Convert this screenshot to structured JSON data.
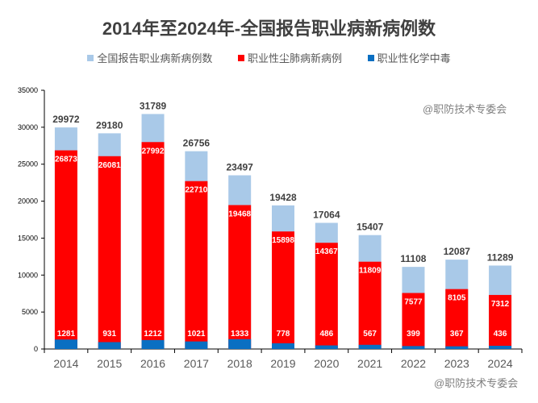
{
  "chart_data": {
    "type": "bar",
    "title": "2014年至2024年-全国报告职业病新病例数",
    "categories": [
      "2014",
      "2015",
      "2016",
      "2017",
      "2018",
      "2019",
      "2020",
      "2021",
      "2022",
      "2023",
      "2024"
    ],
    "series": [
      {
        "name": "全国报告职业病新病例数",
        "color": "#a9c9e8",
        "values": [
          29972,
          29180,
          31789,
          26756,
          23497,
          19428,
          17064,
          15407,
          11108,
          12087,
          11289
        ]
      },
      {
        "name": "职业性尘肺病新病例",
        "color": "#ff0000",
        "values": [
          26873,
          26081,
          27992,
          22710,
          19468,
          15898,
          14367,
          11809,
          7577,
          8105,
          7312
        ]
      },
      {
        "name": "职业性化学中毒",
        "color": "#0a6fc2",
        "values": [
          1281,
          931,
          1212,
          1021,
          1333,
          778,
          486,
          567,
          399,
          367,
          436
        ]
      }
    ],
    "bar_mode": "overlapping",
    "ylim": [
      0,
      35000
    ],
    "yticks": [
      0,
      5000,
      10000,
      15000,
      20000,
      25000,
      30000,
      35000
    ],
    "legend_position": "top",
    "grid": false,
    "watermark": "@职防技术专委会"
  }
}
